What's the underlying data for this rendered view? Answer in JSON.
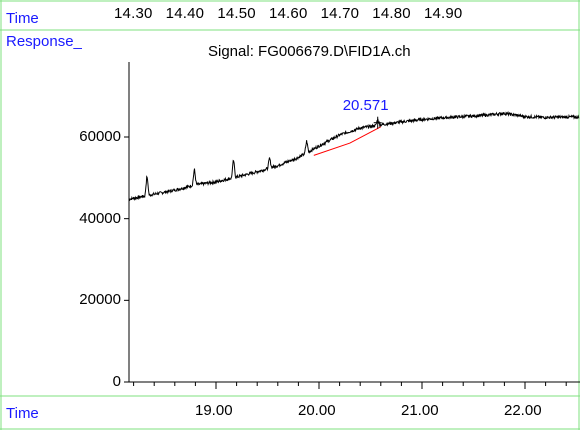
{
  "header": {
    "time_label": "Time",
    "response_label": "Response_",
    "signal_title": "Signal: FG006679.D\\FID1A.ch",
    "top_times": [
      "14.30",
      "14.40",
      "14.50",
      "14.60",
      "14.70",
      "14.80",
      "14.90"
    ]
  },
  "footer": {
    "time_label": "Time"
  },
  "colors": {
    "frame": "#7fe07f",
    "label": "#1a1aff",
    "trace": "#000000",
    "baseline": "#ff0000"
  },
  "chart_data": {
    "type": "line",
    "title": "Signal: FG006679.D\\FID1A.ch",
    "xlabel": "Time",
    "ylabel": "Response_",
    "xlim": [
      18.2,
      23.0
    ],
    "ylim": [
      0,
      75000
    ],
    "x_ticks": [
      19.0,
      20.0,
      21.0,
      22.0
    ],
    "x_tick_labels": [
      "19.00",
      "20.00",
      "21.00",
      "22.00"
    ],
    "y_ticks": [
      0,
      20000,
      40000,
      60000
    ],
    "y_tick_labels": [
      "0",
      "20000",
      "40000",
      "60000"
    ],
    "series": [
      {
        "x": [
          18.0,
          18.2,
          18.4,
          18.6,
          18.8,
          19.0,
          19.2,
          19.4,
          19.6,
          19.8,
          20.0,
          20.2,
          20.4,
          20.6,
          20.8,
          21.0,
          21.2,
          21.4,
          21.6,
          21.8,
          22.0,
          22.2,
          22.4,
          22.6,
          23.0
        ],
        "values": [
          44000,
          45000,
          46000,
          47000,
          48300,
          49000,
          50200,
          51500,
          53000,
          55000,
          57800,
          60500,
          62200,
          63000,
          63700,
          64300,
          64700,
          65000,
          65300,
          65800,
          65000,
          64800,
          64900,
          64900,
          65000
        ]
      }
    ],
    "spikes": [
      {
        "x": 18.33,
        "height": 5000
      },
      {
        "x": 18.79,
        "height": 4000
      },
      {
        "x": 19.17,
        "height": 4500
      },
      {
        "x": 19.52,
        "height": 2500
      },
      {
        "x": 19.88,
        "height": 3000
      },
      {
        "x": 20.57,
        "height": 1500
      }
    ],
    "peak_baseline": {
      "x": [
        19.95,
        20.3,
        20.6
      ],
      "values": [
        55500,
        58500,
        62500
      ]
    },
    "annotations": [
      {
        "text": "20.571",
        "x": 20.57,
        "y": 67500
      }
    ]
  }
}
